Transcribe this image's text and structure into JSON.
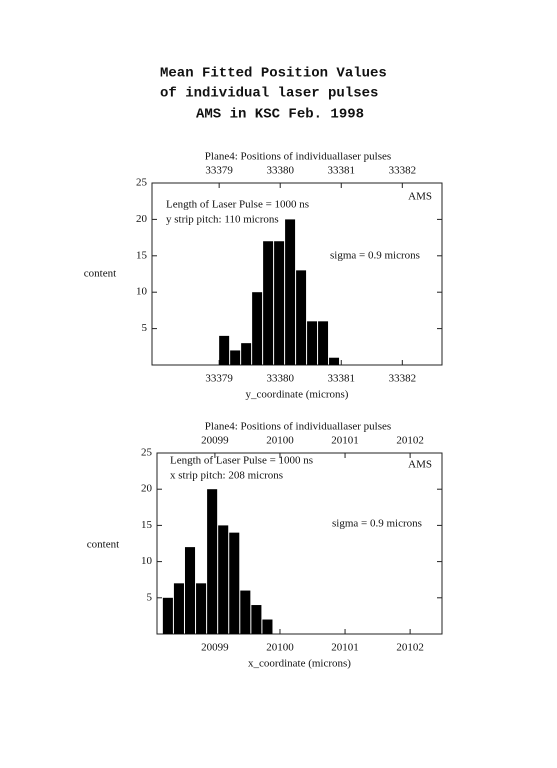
{
  "header": {
    "lines": [
      "Mean Fitted Position Values",
      "of individual laser pulses",
      "AMS in KSC Feb. 1998"
    ]
  },
  "chart_data": [
    {
      "type": "histogram",
      "title": "Plane4: Positions of individuallaser pulses",
      "xlabel": "y_coordinate (microns)",
      "ylabel": "content",
      "annotations": [
        "Length of Laser Pulse = 1000 ns",
        "y strip pitch: 110 microns",
        "sigma = 0.9 microns",
        "AMS"
      ],
      "bins": [
        33379.0,
        33379.18,
        33379.36,
        33379.54,
        33379.72,
        33379.9,
        33380.08,
        33380.26,
        33380.44,
        33380.62,
        33380.8,
        33380.98
      ],
      "values": [
        4,
        2,
        3,
        10,
        17,
        17,
        20,
        13,
        6,
        6,
        1
      ],
      "color": "#000000",
      "xlim": [
        33377.9,
        33382.65
      ],
      "xticks": [
        33379,
        33380,
        33381,
        33382
      ],
      "x2ticks": [
        33379,
        33380,
        33381,
        33382
      ],
      "ylim": [
        0,
        25
      ],
      "yticks": [
        5,
        10,
        15,
        20,
        25
      ]
    },
    {
      "type": "histogram",
      "title": "Plane4: Positions of individuallaser pulses",
      "xlabel": "x_coordinate (microns)",
      "ylabel": "content",
      "annotations": [
        "Length of Laser Pulse = 1000 ns",
        "x strip pitch: 208 microns",
        "sigma = 0.9 microns",
        "AMS"
      ],
      "bins": [
        20098.2,
        20098.37,
        20098.54,
        20098.71,
        20098.88,
        20099.05,
        20099.22,
        20099.39,
        20099.56,
        20099.73,
        20099.9
      ],
      "values": [
        5,
        7,
        12,
        7,
        20,
        15,
        14,
        6,
        4,
        2
      ],
      "color": "#000000",
      "xlim": [
        20098.11,
        20102.49
      ],
      "xticks": [
        20099,
        20100,
        20101,
        20102
      ],
      "x2ticks": [
        20099,
        20100,
        20101,
        20102
      ],
      "ylim": [
        0,
        25
      ],
      "yticks": [
        5,
        10,
        15,
        20,
        25
      ]
    }
  ]
}
